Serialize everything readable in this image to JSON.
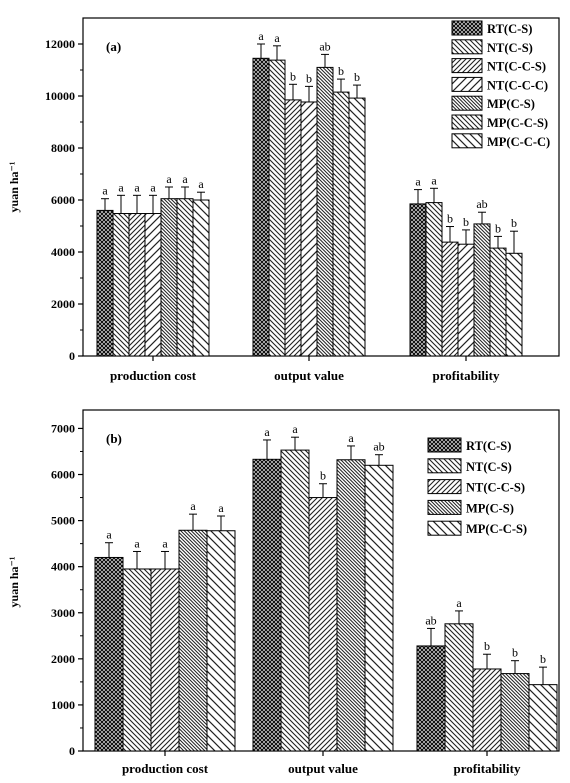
{
  "chart_data": [
    {
      "type": "bar",
      "panel_label": "(a)",
      "ylabel": "yuan ha⁻¹",
      "ylim": [
        0,
        13000
      ],
      "yticks": [
        "0",
        "2000",
        "4000",
        "6000",
        "8000",
        "10000",
        "12000"
      ],
      "categories": [
        "production cost",
        "output value",
        "profitability"
      ],
      "legend_position": "top-right",
      "series": [
        {
          "name": "RT(C-S)",
          "pattern": "crosshatch",
          "values": [
            5600,
            11450,
            5850
          ],
          "errors": [
            450,
            550,
            550
          ],
          "letters": [
            "a",
            "a",
            "a"
          ]
        },
        {
          "name": "NT(C-S)",
          "pattern": "back-diag",
          "values": [
            5480,
            11380,
            5900
          ],
          "errors": [
            700,
            550,
            550
          ],
          "letters": [
            "a",
            "a",
            "a"
          ]
        },
        {
          "name": "NT(C-C-S)",
          "pattern": "fwd-diag",
          "values": [
            5480,
            9850,
            4380
          ],
          "errors": [
            700,
            600,
            600
          ],
          "letters": [
            "a",
            "b",
            "b"
          ]
        },
        {
          "name": "NT(C-C-C)",
          "pattern": "fwd-wide",
          "values": [
            5480,
            9770,
            4300
          ],
          "errors": [
            700,
            600,
            550
          ],
          "letters": [
            "a",
            "b",
            "b"
          ]
        },
        {
          "name": "MP(C-S)",
          "pattern": "back-dense",
          "values": [
            6050,
            11100,
            5080
          ],
          "errors": [
            450,
            500,
            450
          ],
          "letters": [
            "a",
            "ab",
            "ab"
          ]
        },
        {
          "name": "MP(C-C-S)",
          "pattern": "back-diag",
          "values": [
            6050,
            10150,
            4150
          ],
          "errors": [
            450,
            500,
            450
          ],
          "letters": [
            "a",
            "b",
            "b"
          ]
        },
        {
          "name": "MP(C-C-C)",
          "pattern": "back-wide",
          "values": [
            6000,
            9920,
            3950
          ],
          "errors": [
            300,
            500,
            850
          ],
          "letters": [
            "a",
            "b",
            "b"
          ]
        }
      ]
    },
    {
      "type": "bar",
      "panel_label": "(b)",
      "ylabel": "yuan ha⁻¹",
      "ylim": [
        0,
        7400
      ],
      "yticks": [
        "0",
        "1000",
        "2000",
        "3000",
        "4000",
        "5000",
        "6000",
        "7000"
      ],
      "categories": [
        "production cost",
        "output value",
        "profitability"
      ],
      "legend_position": "top-right",
      "series": [
        {
          "name": "RT(C-S)",
          "pattern": "crosshatch",
          "values": [
            4200,
            6330,
            2280
          ],
          "errors": [
            320,
            420,
            380
          ],
          "letters": [
            "a",
            "a",
            "ab"
          ]
        },
        {
          "name": "NT(C-S)",
          "pattern": "back-diag",
          "values": [
            3950,
            6530,
            2760
          ],
          "errors": [
            380,
            280,
            280
          ],
          "letters": [
            "a",
            "a",
            "a"
          ]
        },
        {
          "name": "NT(C-C-S)",
          "pattern": "fwd-diag",
          "values": [
            3950,
            5500,
            1780
          ],
          "errors": [
            380,
            300,
            320
          ],
          "letters": [
            "a",
            "b",
            "b"
          ]
        },
        {
          "name": "MP(C-S)",
          "pattern": "back-dense",
          "values": [
            4790,
            6320,
            1680
          ],
          "errors": [
            350,
            300,
            280
          ],
          "letters": [
            "a",
            "a",
            "b"
          ]
        },
        {
          "name": "MP(C-C-S)",
          "pattern": "back-wide",
          "values": [
            4780,
            6200,
            1440
          ],
          "errors": [
            320,
            230,
            380
          ],
          "letters": [
            "a",
            "ab",
            "b"
          ]
        }
      ]
    }
  ]
}
